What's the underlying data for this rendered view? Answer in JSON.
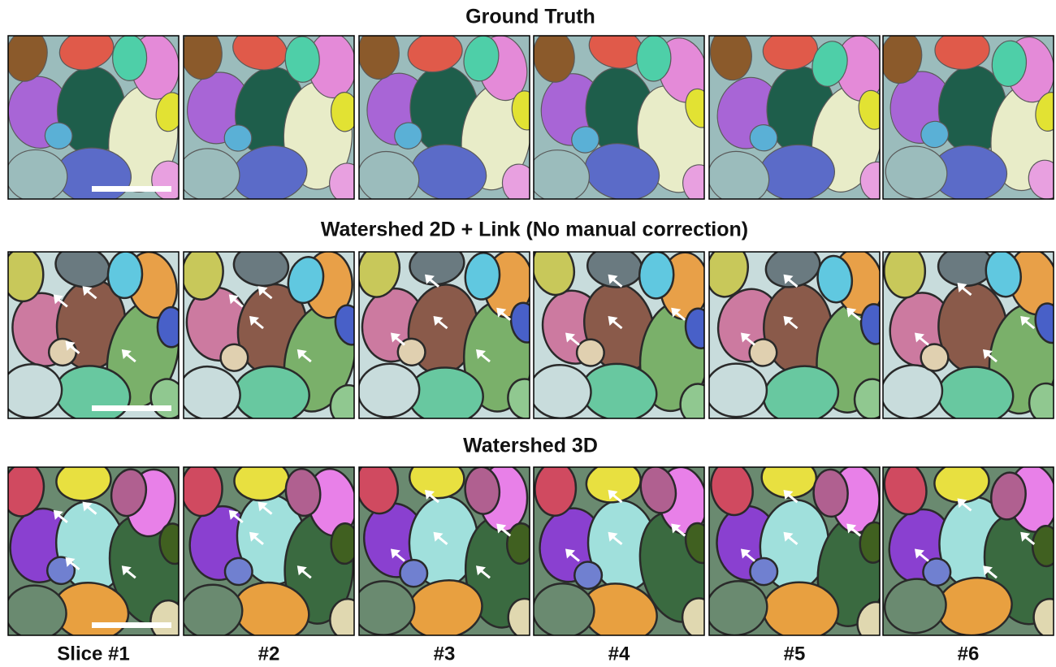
{
  "rows": [
    {
      "title": "Ground Truth"
    },
    {
      "title": "Watershed 2D + Link (No manual correction)"
    },
    {
      "title": "Watershed 3D"
    }
  ],
  "column_labels": [
    "Slice #1",
    "#2",
    "#3",
    "#4",
    "#5",
    "#6"
  ]
}
